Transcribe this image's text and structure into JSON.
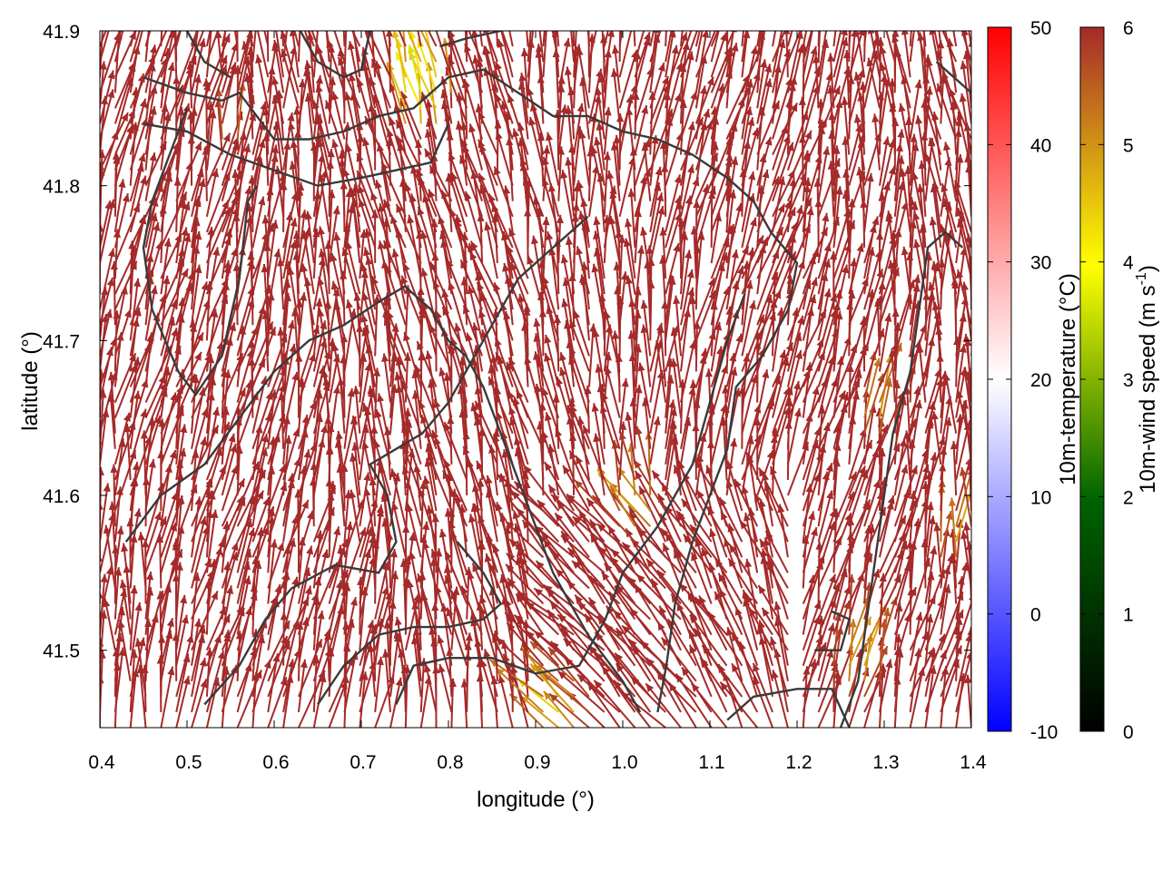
{
  "chart_data": {
    "type": "vector-field",
    "xlabel": "longitude (°)",
    "ylabel": "latitude (°)",
    "xlim": [
      0.4,
      1.4
    ],
    "ylim": [
      41.45,
      41.9
    ],
    "x_ticks": [
      "0.4",
      "0.5",
      "0.6",
      "0.7",
      "0.8",
      "0.9",
      "1.0",
      "1.1",
      "1.2",
      "1.3",
      "1.4"
    ],
    "y_ticks": [
      "41.5",
      "41.6",
      "41.7",
      "41.8",
      "41.9"
    ],
    "grid": false,
    "field": {
      "nx": 58,
      "ny": 46,
      "dominant_direction": "north",
      "dominant_speed_m_s": 6
    },
    "calm_patches": [
      {
        "lon": 1.02,
        "lat": 41.59,
        "speed": 4.6
      },
      {
        "lon": 1.27,
        "lat": 41.49,
        "speed": 4.5
      },
      {
        "lon": 0.93,
        "lat": 41.46,
        "speed": 4.3
      },
      {
        "lon": 1.29,
        "lat": 41.65,
        "speed": 4.8
      },
      {
        "lon": 0.77,
        "lat": 41.86,
        "speed": 3.6
      },
      {
        "lon": 0.55,
        "lat": 41.83,
        "speed": 5.2
      },
      {
        "lon": 1.38,
        "lat": 41.57,
        "speed": 4.7
      }
    ],
    "contours": [
      [
        [
          0.45,
          41.87
        ],
        [
          0.5,
          41.86
        ],
        [
          0.54,
          41.855
        ],
        [
          0.56,
          41.86
        ],
        [
          0.6,
          41.83
        ],
        [
          0.64,
          41.83
        ],
        [
          0.68,
          41.835
        ],
        [
          0.72,
          41.845
        ],
        [
          0.76,
          41.85
        ],
        [
          0.8,
          41.87
        ],
        [
          0.84,
          41.875
        ],
        [
          0.88,
          41.86
        ],
        [
          0.92,
          41.845
        ],
        [
          0.96,
          41.845
        ],
        [
          1.0,
          41.835
        ],
        [
          1.04,
          41.83
        ],
        [
          1.08,
          41.82
        ],
        [
          1.12,
          41.805
        ],
        [
          1.15,
          41.79
        ],
        [
          1.17,
          41.77
        ],
        [
          1.2,
          41.75
        ],
        [
          1.19,
          41.72
        ],
        [
          1.16,
          41.69
        ],
        [
          1.13,
          41.67
        ],
        [
          1.12,
          41.63
        ],
        [
          1.1,
          41.6
        ],
        [
          1.08,
          41.57
        ],
        [
          1.06,
          41.53
        ],
        [
          1.05,
          41.49
        ],
        [
          1.04,
          41.46
        ]
      ],
      [
        [
          0.45,
          41.84
        ],
        [
          0.5,
          41.835
        ],
        [
          0.55,
          41.82
        ],
        [
          0.6,
          41.81
        ],
        [
          0.65,
          41.8
        ],
        [
          0.7,
          41.805
        ],
        [
          0.74,
          41.81
        ],
        [
          0.78,
          41.815
        ],
        [
          0.8,
          41.84
        ]
      ],
      [
        [
          0.63,
          41.9
        ],
        [
          0.65,
          41.88
        ],
        [
          0.68,
          41.87
        ],
        [
          0.7,
          41.875
        ],
        [
          0.71,
          41.9
        ]
      ],
      [
        [
          0.79,
          41.89
        ],
        [
          0.82,
          41.895
        ],
        [
          0.86,
          41.9
        ]
      ],
      [
        [
          0.5,
          41.85
        ],
        [
          0.48,
          41.82
        ],
        [
          0.46,
          41.79
        ],
        [
          0.45,
          41.76
        ],
        [
          0.46,
          41.72
        ],
        [
          0.49,
          41.68
        ],
        [
          0.51,
          41.665
        ],
        [
          0.54,
          41.69
        ],
        [
          0.56,
          41.74
        ],
        [
          0.57,
          41.79
        ],
        [
          0.58,
          41.8
        ]
      ],
      [
        [
          0.43,
          41.57
        ],
        [
          0.47,
          41.6
        ],
        [
          0.52,
          41.62
        ],
        [
          0.56,
          41.65
        ],
        [
          0.6,
          41.68
        ],
        [
          0.64,
          41.7
        ],
        [
          0.68,
          41.71
        ],
        [
          0.72,
          41.725
        ],
        [
          0.75,
          41.735
        ],
        [
          0.78,
          41.72
        ],
        [
          0.8,
          41.7
        ],
        [
          0.82,
          41.69
        ],
        [
          0.84,
          41.67
        ],
        [
          0.86,
          41.64
        ],
        [
          0.88,
          41.61
        ],
        [
          0.9,
          41.58
        ],
        [
          0.92,
          41.55
        ],
        [
          0.94,
          41.53
        ],
        [
          0.96,
          41.51
        ],
        [
          1.0,
          41.48
        ],
        [
          1.02,
          41.46
        ]
      ],
      [
        [
          0.52,
          41.465
        ],
        [
          0.56,
          41.49
        ],
        [
          0.59,
          41.52
        ],
        [
          0.62,
          41.54
        ],
        [
          0.67,
          41.555
        ],
        [
          0.72,
          41.55
        ],
        [
          0.74,
          41.57
        ],
        [
          0.73,
          41.6
        ],
        [
          0.71,
          41.62
        ],
        [
          0.74,
          41.63
        ],
        [
          0.77,
          41.64
        ],
        [
          0.8,
          41.66
        ],
        [
          0.82,
          41.68
        ],
        [
          0.84,
          41.7
        ],
        [
          0.86,
          41.72
        ],
        [
          0.88,
          41.74
        ],
        [
          0.92,
          41.76
        ],
        [
          0.96,
          41.78
        ]
      ],
      [
        [
          0.65,
          41.465
        ],
        [
          0.68,
          41.49
        ],
        [
          0.72,
          41.51
        ],
        [
          0.76,
          41.515
        ],
        [
          0.8,
          41.515
        ],
        [
          0.84,
          41.52
        ],
        [
          0.86,
          41.53
        ],
        [
          0.84,
          41.55
        ],
        [
          0.81,
          41.57
        ]
      ],
      [
        [
          0.74,
          41.465
        ],
        [
          0.76,
          41.49
        ],
        [
          0.8,
          41.495
        ],
        [
          0.85,
          41.495
        ],
        [
          0.9,
          41.485
        ],
        [
          0.95,
          41.49
        ],
        [
          0.98,
          41.52
        ],
        [
          1.0,
          41.55
        ],
        [
          1.04,
          41.58
        ],
        [
          1.08,
          41.62
        ],
        [
          1.1,
          41.66
        ],
        [
          1.12,
          41.7
        ],
        [
          1.14,
          41.73
        ]
      ],
      [
        [
          1.12,
          41.455
        ],
        [
          1.15,
          41.47
        ],
        [
          1.2,
          41.475
        ],
        [
          1.24,
          41.475
        ],
        [
          1.26,
          41.45
        ]
      ],
      [
        [
          1.22,
          41.5
        ],
        [
          1.25,
          41.5
        ],
        [
          1.26,
          41.52
        ],
        [
          1.24,
          41.525
        ]
      ],
      [
        [
          1.25,
          41.45
        ],
        [
          1.27,
          41.48
        ],
        [
          1.28,
          41.52
        ],
        [
          1.29,
          41.56
        ],
        [
          1.3,
          41.6
        ],
        [
          1.31,
          41.64
        ],
        [
          1.33,
          41.68
        ],
        [
          1.34,
          41.72
        ],
        [
          1.35,
          41.76
        ],
        [
          1.37,
          41.77
        ],
        [
          1.39,
          41.76
        ]
      ],
      [
        [
          1.36,
          41.88
        ],
        [
          1.38,
          41.87
        ],
        [
          1.4,
          41.86
        ]
      ],
      [
        [
          0.5,
          41.9
        ],
        [
          0.52,
          41.88
        ],
        [
          0.55,
          41.87
        ]
      ]
    ]
  },
  "colorbars": [
    {
      "label": "10m-temperature (°C)",
      "ticks": [
        "50",
        "40",
        "30",
        "20",
        "10",
        "0",
        "-10"
      ],
      "range": [
        -10,
        50
      ],
      "colors": [
        "#0000ff",
        "#ffffff",
        "#ff0000"
      ]
    },
    {
      "label": "10m-wind speed (m s-1)",
      "label_main": "10m-wind speed (m s",
      "label_sup": "-1",
      "label_end": ")",
      "ticks": [
        "6",
        "5",
        "4",
        "3",
        "2",
        "1",
        "0"
      ],
      "range": [
        0,
        6
      ],
      "colors": [
        "#000000",
        "#006400",
        "#ffff00",
        "#a52a2a"
      ]
    }
  ],
  "colors": {
    "arrow_dominant": "#a52a2a",
    "contour": "#3a3a3a"
  }
}
